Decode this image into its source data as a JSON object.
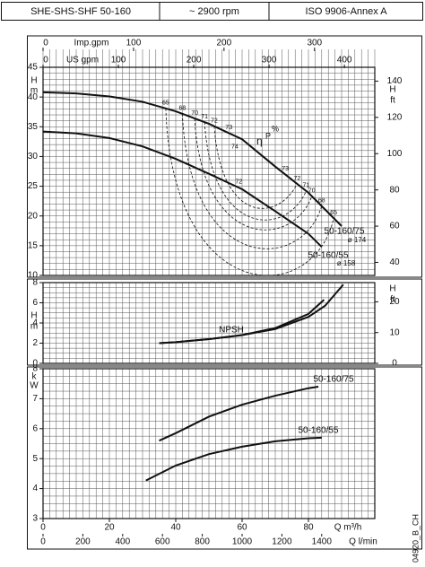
{
  "header": {
    "cells": [
      "SHE-SHS-SHF 50-160",
      "~ 2900 rpm",
      "ISO 9906-Annex A"
    ]
  },
  "doc_code": "04920_B_CH",
  "chart_data": [
    {
      "type": "line",
      "xlim": [
        0,
        100
      ],
      "ylabel": "H",
      "yunit": "m",
      "ylim": [
        10,
        45
      ],
      "yticks": [
        10,
        15,
        20,
        25,
        30,
        35,
        40,
        45
      ],
      "y2label": "H",
      "y2unit": "ft",
      "y2lim": [
        32.81,
        147.64
      ],
      "y2ticks": [
        40,
        60,
        80,
        100,
        120,
        140
      ],
      "grid": true,
      "grid_minor": {
        "x": 2,
        "y": 1
      },
      "top_axes": [
        {
          "label": "Imp.gpm",
          "lim": [
            0,
            366.6
          ],
          "ticks": [
            0,
            100,
            200,
            300
          ]
        },
        {
          "label": "US gpm",
          "lim": [
            0,
            440.3
          ],
          "ticks": [
            0,
            100,
            200,
            300,
            400
          ]
        }
      ],
      "series": [
        {
          "name": "50-160/75",
          "diameter": "ø 174",
          "color": "#111111",
          "x": [
            0,
            10,
            20,
            30,
            40,
            50,
            60,
            70,
            80,
            90
          ],
          "values": [
            40.8,
            40.6,
            40.1,
            39.2,
            37.6,
            35.5,
            32.9,
            28.3,
            23.9,
            18.3
          ]
        },
        {
          "name": "50-160/55",
          "diameter": "ø 158",
          "color": "#111111",
          "x": [
            0,
            10,
            20,
            30,
            40,
            50,
            60,
            70,
            80,
            84
          ],
          "values": [
            34.2,
            33.9,
            33.1,
            31.7,
            29.6,
            27.1,
            24.5,
            20.8,
            17.0,
            14.8
          ]
        }
      ],
      "efficiency": {
        "symbol": "η",
        "sub": "P",
        "unit": "%",
        "points": [
          {
            "value": 65,
            "x": 37,
            "y": 38.1
          },
          {
            "value": 68,
            "x": 42,
            "y": 37.2
          },
          {
            "value": 70,
            "x": 45.7,
            "y": 36.4
          },
          {
            "value": 71,
            "x": 48.7,
            "y": 35.8
          },
          {
            "value": 72,
            "x": 51.6,
            "y": 35.1
          },
          {
            "value": 73,
            "x": 56,
            "y": 34.0
          },
          {
            "value": 74,
            "x": 57.8,
            "y": 30.7
          },
          {
            "value": 72,
            "x": 59,
            "y": 24.8
          },
          {
            "value": 73,
            "x": 73,
            "y": 27.0
          },
          {
            "value": 72,
            "x": 76.6,
            "y": 25.4
          },
          {
            "value": 71,
            "x": 79.3,
            "y": 24.2
          },
          {
            "value": 70,
            "x": 81,
            "y": 23.3
          },
          {
            "value": 68,
            "x": 84,
            "y": 21.7
          },
          {
            "value": 65,
            "x": 87.6,
            "y": 19.6
          }
        ]
      }
    },
    {
      "type": "line",
      "xlim": [
        0,
        100
      ],
      "label": "NPSH",
      "ylabel": "H",
      "yunit": "m",
      "ylim": [
        0,
        8
      ],
      "yticks": [
        0,
        2,
        4,
        6,
        8
      ],
      "y2label": "H",
      "y2unit": "ft",
      "y2lim": [
        0,
        26.25
      ],
      "y2ticks": [
        0,
        10,
        20
      ],
      "grid": true,
      "grid_minor": {
        "x": 2,
        "y": 0.5
      },
      "series": [
        {
          "name": "50-160/75",
          "color": "#111111",
          "x": [
            35,
            40,
            50,
            60,
            70,
            80,
            85,
            90.5
          ],
          "values": [
            2.0,
            2.1,
            2.4,
            2.8,
            3.4,
            4.6,
            5.7,
            7.8
          ]
        },
        {
          "name": "50-160/55",
          "color": "#111111",
          "x": [
            35,
            40,
            50,
            60,
            70,
            80,
            84.7
          ],
          "values": [
            2.0,
            2.1,
            2.4,
            2.8,
            3.5,
            4.9,
            6.3
          ]
        }
      ]
    },
    {
      "type": "line",
      "xlim": [
        0,
        100
      ],
      "ylabel": "k",
      "yunit": "W",
      "ylim": [
        3,
        8
      ],
      "yticks": [
        3,
        4,
        5,
        6,
        7,
        8
      ],
      "grid": true,
      "grid_minor": {
        "x": 2,
        "y": 0.25
      },
      "xlabel": "Q m³/h",
      "xticks": [
        0,
        20,
        40,
        60,
        80
      ],
      "bottom_axes": [
        {
          "label": "Q l/min",
          "lim": [
            0,
            1666.7
          ],
          "ticks": [
            0,
            200,
            400,
            600,
            800,
            1000,
            1200,
            1400
          ]
        }
      ],
      "series": [
        {
          "name": "50-160/75",
          "color": "#111111",
          "x": [
            35,
            40,
            50,
            60,
            70,
            80,
            83
          ],
          "values": [
            5.6,
            5.85,
            6.4,
            6.8,
            7.1,
            7.35,
            7.4
          ]
        },
        {
          "name": "50-160/55",
          "color": "#111111",
          "x": [
            31,
            40,
            50,
            60,
            70,
            80,
            84
          ],
          "values": [
            4.27,
            4.77,
            5.15,
            5.4,
            5.58,
            5.68,
            5.7
          ]
        }
      ]
    }
  ]
}
